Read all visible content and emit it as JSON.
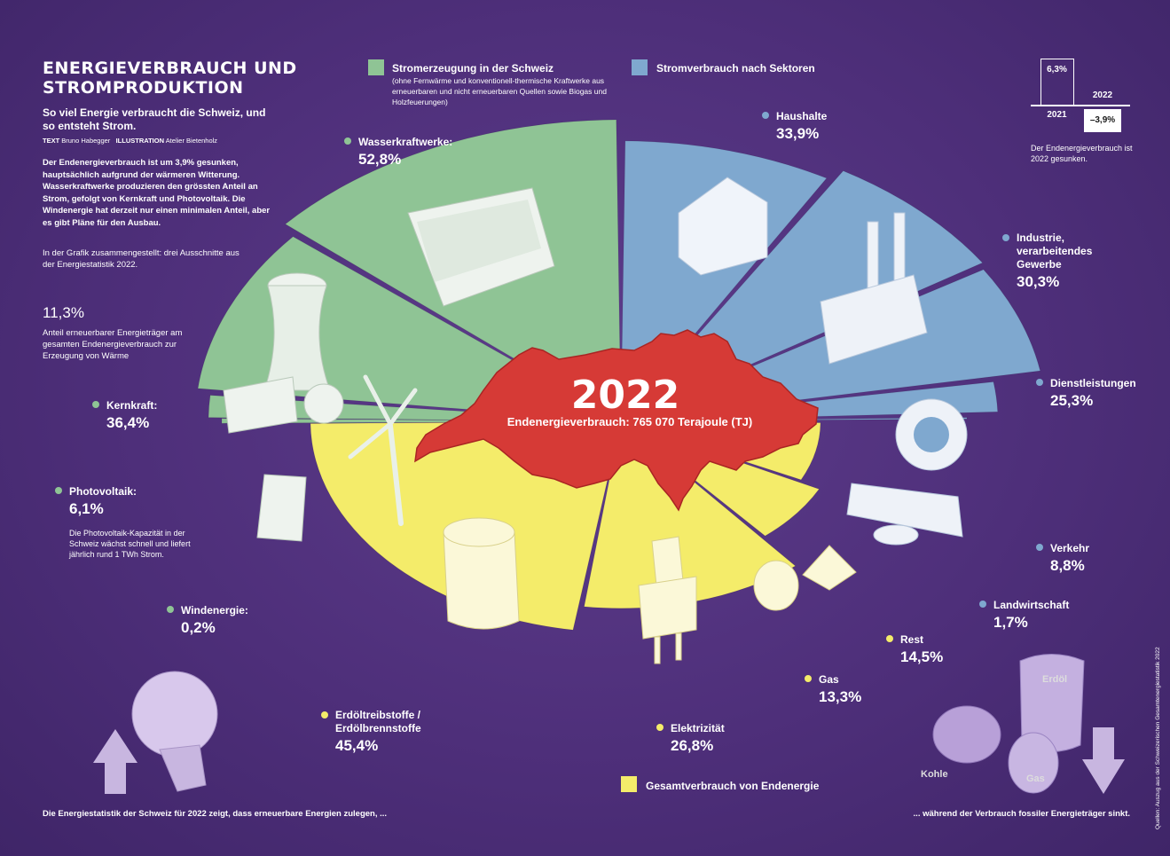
{
  "title": "ENERGIEVERBRAUCH UND STROMPRODUKTION",
  "subtitle": "So viel Energie verbraucht die Schweiz, und so entsteht Strom.",
  "credits": {
    "text_label": "TEXT",
    "text_author": "Bruno Habegger",
    "illu_label": "ILLUSTRATION",
    "illu_author": "Atelier Bietenholz"
  },
  "intro": "Der Endenergieverbrauch ist um 3,9% gesunken, hauptsächlich aufgrund der wärmeren Witterung. Wasserkraftwerke produzieren den grössten Anteil an Strom, gefolgt von Kernkraft und Photovoltaik. Die Windenergie hat derzeit nur einen minimalen Anteil, aber es gibt Pläne für den Ausbau.",
  "note": "In der Grafik zusammengestellt: drei Ausschnitte aus der Energiestatistik 2022.",
  "renewable": {
    "value": "11,3%",
    "text": "Anteil erneuerbarer Energieträger am gesamten Endenergieverbrauch zur Erzeugung von Wärme"
  },
  "center": {
    "year": "2022",
    "text": "Endenergieverbrauch: 765 070 Terajoule (TJ)"
  },
  "pv_note": "Die Photovoltaik-Kapazität in der Schweiz wächst schnell und liefert jährlich rund 1 TWh Strom.",
  "legend": {
    "green_title": "Stromerzeugung in der Schweiz",
    "green_sub": "(ohne Fernwärme und konventionell-thermische Kraftwerke aus erneuerbaren und nicht erneuerbaren Quellen sowie Biogas und Holzfeuerungen)",
    "blue_title": "Stromverbrauch nach Sektoren",
    "yellow_title": "Gesamtverbrauch von Endenergie"
  },
  "mini_chart": {
    "v2021": "6,3%",
    "y2021": "2021",
    "y2022": "2022",
    "v2022": "–3,9%",
    "text": "Der Endenergieverbrauch ist 2022 gesunken."
  },
  "labels": {
    "wasser": {
      "name": "Wasserkraftwerke:",
      "pct": "52,8%"
    },
    "kern": {
      "name": "Kernkraft:",
      "pct": "36,4%"
    },
    "pv": {
      "name": "Photovoltaik:",
      "pct": "6,1%"
    },
    "wind": {
      "name": "Windenergie:",
      "pct": "0,2%"
    },
    "haus": {
      "name": "Haushalte",
      "pct": "33,9%"
    },
    "ind": {
      "name": "Industrie, verarbeitendes Gewerbe",
      "pct": "30,3%"
    },
    "dienst": {
      "name": "Dienstleistungen",
      "pct": "25,3%"
    },
    "verkehr": {
      "name": "Verkehr",
      "pct": "8,8%"
    },
    "landw": {
      "name": "Landwirtschaft",
      "pct": "1,7%"
    },
    "rest": {
      "name": "Rest",
      "pct": "14,5%"
    },
    "gas": {
      "name": "Gas",
      "pct": "13,3%"
    },
    "elek": {
      "name": "Elektrizität",
      "pct": "26,8%"
    },
    "erdoel": {
      "name": "Erdöltreibstoffe / Erdölbrennstoffe",
      "pct": "45,4%"
    }
  },
  "bottom_left": "Die Energiestatistik der Schweiz für 2022 zeigt, dass erneuerbare Energien zulegen, ...",
  "bottom_right": "... während der Verbrauch fossiler Energieträger sinkt.",
  "source": "Quellen: Auszug aus der Schweizerischen Gesamtenergiestatistik 2022",
  "pic_labels": {
    "erdoel": "Erdöl",
    "kohle": "Kohle",
    "gas": "Gas"
  },
  "colors": {
    "green": "#8fc495",
    "blue": "#7fa8cf",
    "yellow": "#f4ec6a",
    "red": "#d63a36",
    "background": "#4e2f7a"
  },
  "chart_data": [
    {
      "type": "pie",
      "title": "Stromerzeugung in der Schweiz",
      "categories": [
        "Wasserkraftwerke",
        "Kernkraft",
        "Photovoltaik",
        "Windenergie"
      ],
      "values": [
        52.8,
        36.4,
        6.1,
        0.2
      ],
      "unit": "%"
    },
    {
      "type": "pie",
      "title": "Stromverbrauch nach Sektoren",
      "categories": [
        "Haushalte",
        "Industrie, verarbeitendes Gewerbe",
        "Dienstleistungen",
        "Verkehr",
        "Landwirtschaft"
      ],
      "values": [
        33.9,
        30.3,
        25.3,
        8.8,
        1.7
      ],
      "unit": "%"
    },
    {
      "type": "pie",
      "title": "Gesamtverbrauch von Endenergie",
      "categories": [
        "Erdöltreibstoffe / Erdölbrennstoffe",
        "Elektrizität",
        "Gas",
        "Rest"
      ],
      "values": [
        45.4,
        26.8,
        13.3,
        14.5
      ],
      "unit": "%"
    }
  ]
}
